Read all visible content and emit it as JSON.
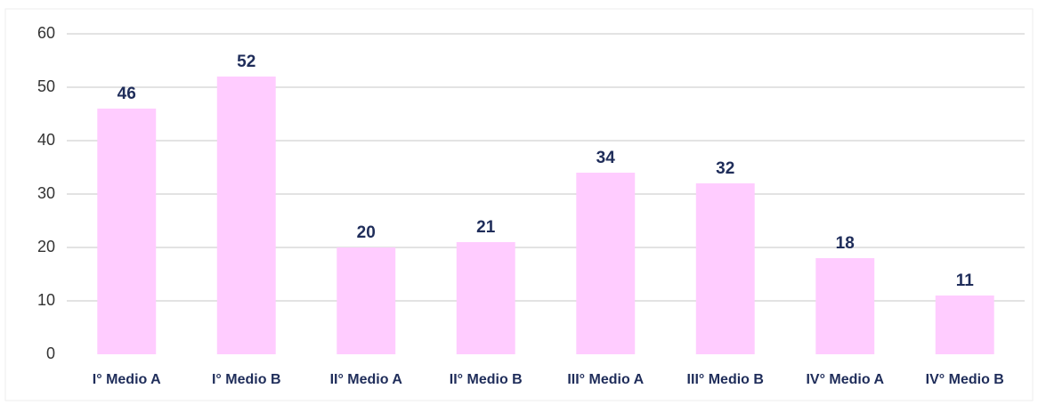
{
  "chart_data": {
    "type": "bar",
    "categories": [
      "I° Medio A",
      "I° Medio B",
      "II° Medio A",
      "II° Medio B",
      "III° Medio A",
      "III° Medio B",
      "IV° Medio A",
      "IV° Medio B"
    ],
    "values": [
      46,
      52,
      20,
      21,
      34,
      32,
      18,
      11
    ],
    "color": "#ffccff",
    "ylim": [
      0,
      60
    ],
    "yticks": [
      0,
      10,
      20,
      30,
      40,
      50,
      60
    ],
    "grid": true
  }
}
